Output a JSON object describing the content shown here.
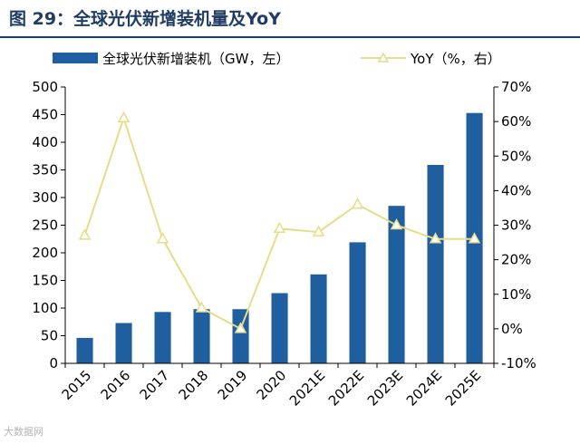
{
  "title": "图 29：全球光伏新增装机量及YoY",
  "watermark": "大数据网",
  "colors": {
    "bar": "#1f5f9f",
    "line": "#e8dc8a",
    "title": "#1f3c64",
    "axis": "#000000"
  },
  "chart_data": {
    "type": "bar+line",
    "categories": [
      "2015",
      "2016",
      "2017",
      "2018",
      "2019",
      "2020",
      "2021E",
      "2022E",
      "2023E",
      "2024E",
      "2025E"
    ],
    "series": [
      {
        "name": "全球光伏新增装机（GW，左）",
        "type": "bar",
        "axis": "left",
        "values": [
          46,
          73,
          93,
          98,
          98,
          127,
          161,
          219,
          285,
          359,
          453
        ]
      },
      {
        "name": "YoY（%，右）",
        "type": "line",
        "axis": "right",
        "marker": "triangle-open",
        "values": [
          27,
          61,
          26,
          6,
          0,
          29,
          28,
          36,
          30,
          26,
          26
        ]
      }
    ],
    "y_left": {
      "min": 0,
      "max": 500,
      "step": 50,
      "ticks": [
        "0",
        "50",
        "100",
        "150",
        "200",
        "250",
        "300",
        "350",
        "400",
        "450",
        "500"
      ]
    },
    "y_right": {
      "min": -10,
      "max": 70,
      "step": 10,
      "ticks": [
        "-10%",
        "0%",
        "10%",
        "20%",
        "30%",
        "40%",
        "50%",
        "60%",
        "70%"
      ]
    },
    "grid": false,
    "legend": "top"
  }
}
